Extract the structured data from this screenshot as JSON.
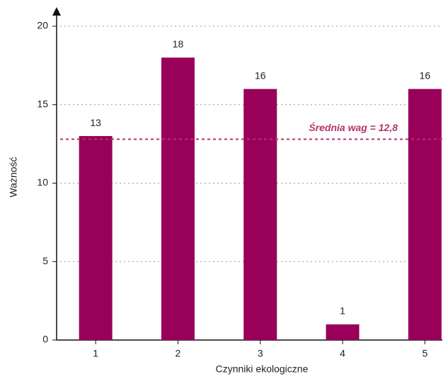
{
  "chart_data": {
    "type": "bar",
    "x_label": "Czynniki ekologiczne",
    "y_label": "Ważność",
    "categories": [
      "1",
      "2",
      "3",
      "4",
      "5"
    ],
    "values": [
      13,
      18,
      16,
      1,
      16
    ],
    "color": "#99005a",
    "ylim": [
      0,
      20
    ],
    "yticks": [
      0,
      5,
      10,
      15,
      20
    ],
    "grid": true,
    "mean_line": {
      "value": 12.8,
      "label": "Średnia wag = 12,8",
      "color": "#b5336e"
    }
  }
}
